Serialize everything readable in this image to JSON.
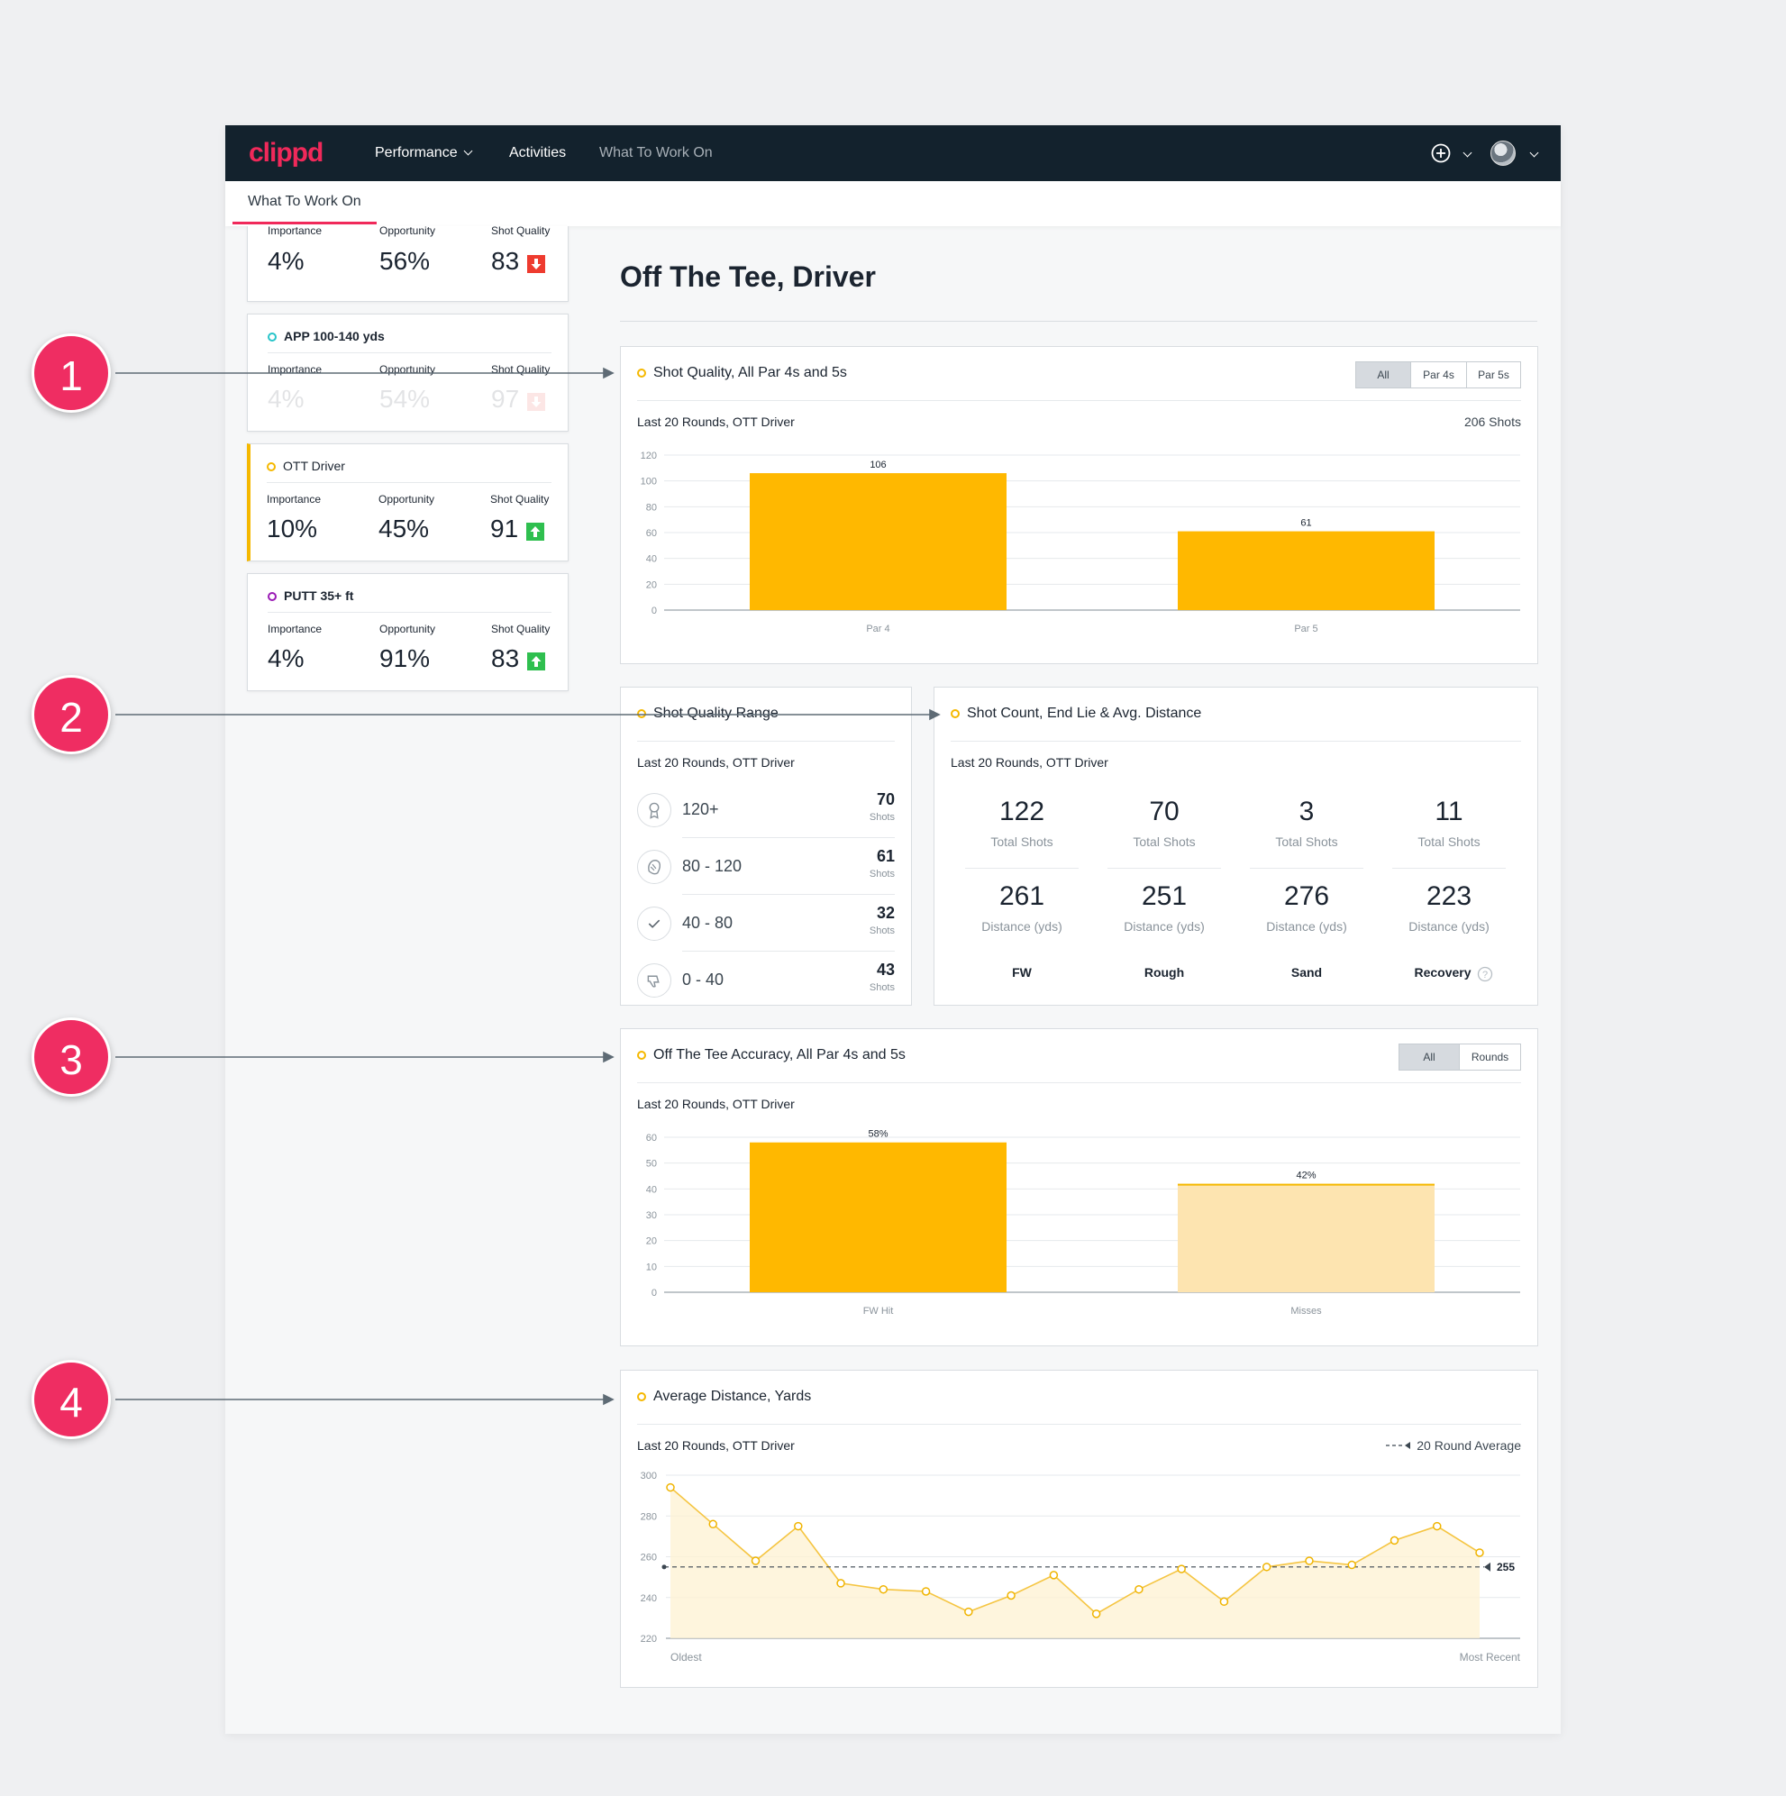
{
  "app": {
    "logo": "clippd",
    "nav": {
      "performance": "Performance",
      "activities": "Activities",
      "what_to_work_on": "What To Work On"
    },
    "subnav": {
      "tab": "What To Work On"
    }
  },
  "sidebar": {
    "cards": [
      {
        "title": "",
        "importance_label": "Importance",
        "opportunity_label": "Opportunity",
        "quality_label": "Shot Quality",
        "importance": "4%",
        "opportunity": "56%",
        "quality": "83",
        "trend": "down"
      },
      {
        "title": "APP 100-140 yds",
        "importance_label": "Importance",
        "opportunity_label": "Opportunity",
        "quality_label": "Shot Quality",
        "importance": "4%",
        "opportunity": "54%",
        "quality": "97",
        "trend": "down"
      },
      {
        "title": "OTT Driver",
        "importance_label": "Importance",
        "opportunity_label": "Opportunity",
        "quality_label": "Shot Quality",
        "importance": "10%",
        "opportunity": "45%",
        "quality": "91",
        "trend": "up"
      },
      {
        "title": "PUTT 35+ ft",
        "importance_label": "Importance",
        "opportunity_label": "Opportunity",
        "quality_label": "Shot Quality",
        "importance": "4%",
        "opportunity": "91%",
        "quality": "83",
        "trend": "up"
      }
    ]
  },
  "main": {
    "title": "Off The Tee, Driver"
  },
  "shot_quality": {
    "title": "Shot Quality, All Par 4s and 5s",
    "subtitle": "Last 20 Rounds, OTT Driver",
    "count": "206 Shots",
    "filters": [
      "All",
      "Par 4s",
      "Par 5s"
    ]
  },
  "quality_range": {
    "title": "Shot Quality Range",
    "subtitle": "Last 20 Rounds, OTT Driver",
    "rows": [
      {
        "label": "120+",
        "value": "70",
        "unit": "Shots"
      },
      {
        "label": "80 - 120",
        "value": "61",
        "unit": "Shots"
      },
      {
        "label": "40 - 80",
        "value": "32",
        "unit": "Shots"
      },
      {
        "label": "0 - 40",
        "value": "43",
        "unit": "Shots"
      }
    ]
  },
  "shot_count": {
    "title": "Shot Count, End Lie & Avg. Distance",
    "subtitle": "Last 20 Rounds, OTT Driver",
    "columns": [
      {
        "total": "122",
        "total_label": "Total Shots",
        "distance": "261",
        "distance_label": "Distance (yds)",
        "lie": "FW"
      },
      {
        "total": "70",
        "total_label": "Total Shots",
        "distance": "251",
        "distance_label": "Distance (yds)",
        "lie": "Rough"
      },
      {
        "total": "3",
        "total_label": "Total Shots",
        "distance": "276",
        "distance_label": "Distance (yds)",
        "lie": "Sand"
      },
      {
        "total": "11",
        "total_label": "Total Shots",
        "distance": "223",
        "distance_label": "Distance (yds)",
        "lie": "Recovery"
      }
    ]
  },
  "accuracy": {
    "title": "Off The Tee Accuracy, All Par 4s and 5s",
    "subtitle": "Last 20 Rounds, OTT Driver",
    "filters": [
      "All",
      "Rounds"
    ]
  },
  "avg_distance": {
    "title": "Average Distance, Yards",
    "subtitle": "Last 20 Rounds, OTT Driver",
    "legend": "20 Round Average"
  },
  "annotations": [
    "1",
    "2",
    "3",
    "4"
  ],
  "colors": {
    "accent": "#f0295a",
    "bar": "#ffb800",
    "bar_light": "#fde4b0",
    "nav_bg": "#13222d"
  },
  "chart_data": [
    {
      "type": "bar",
      "title": "Shot Quality, All Par 4s and 5s",
      "categories": [
        "Par 4",
        "Par 5"
      ],
      "values": [
        106,
        61
      ],
      "ylim": [
        0,
        120
      ],
      "yticks": [
        0,
        20,
        40,
        60,
        80,
        100,
        120
      ]
    },
    {
      "type": "bar",
      "title": "Off The Tee Accuracy, All Par 4s and 5s",
      "categories": [
        "FW Hit",
        "Misses"
      ],
      "values": [
        58,
        42
      ],
      "value_labels": [
        "58%",
        "42%"
      ],
      "ylim": [
        0,
        60
      ],
      "yticks": [
        0,
        10,
        20,
        30,
        40,
        50,
        60
      ]
    },
    {
      "type": "line",
      "title": "Average Distance, Yards",
      "x_start_label": "Oldest",
      "x_end_label": "Most Recent",
      "values": [
        294,
        276,
        258,
        275,
        247,
        244,
        243,
        233,
        241,
        251,
        232,
        244,
        254,
        238,
        255,
        258,
        256,
        268,
        275,
        262
      ],
      "average": 255,
      "average_label": "255",
      "ylim": [
        220,
        300
      ],
      "yticks": [
        220,
        240,
        260,
        280,
        300
      ]
    }
  ]
}
